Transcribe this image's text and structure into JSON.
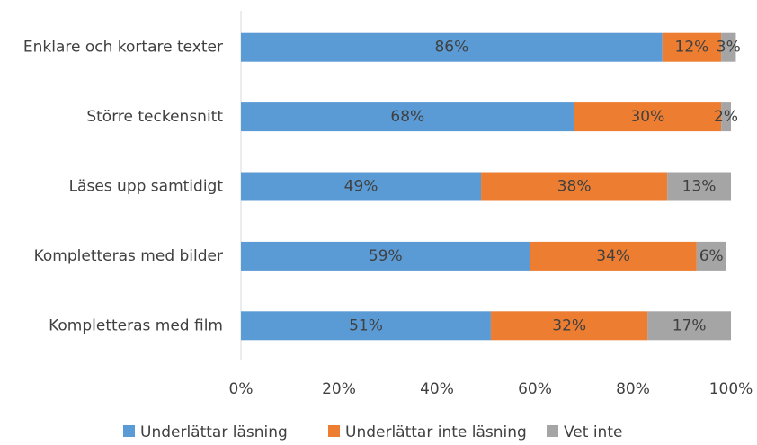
{
  "chart_data": {
    "type": "stacked_barh",
    "categories": [
      "Enklare och kortare texter",
      "Större teckensnitt",
      "Läses upp samtidigt",
      "Kompletteras med bilder",
      "Kompletteras med film"
    ],
    "series": [
      {
        "name": "Underlättar läsning",
        "color": "#5b9bd5",
        "values": [
          86,
          68,
          49,
          59,
          51
        ],
        "value_labels": [
          "86%",
          "68%",
          "49%",
          "59%",
          "51%"
        ]
      },
      {
        "name": "Underlättar inte läsning",
        "color": "#ed7d31",
        "values": [
          12,
          30,
          38,
          34,
          32
        ],
        "value_labels": [
          "12%",
          "30%",
          "38%",
          "34%",
          "32%"
        ]
      },
      {
        "name": "Vet inte",
        "color": "#a5a5a5",
        "values": [
          3,
          2,
          13,
          6,
          17
        ],
        "value_labels": [
          "3%",
          "2%",
          "13%",
          "6%",
          "17%"
        ]
      }
    ],
    "xlim": [
      0,
      100
    ],
    "xticks": [
      {
        "value": 0,
        "label": "0%"
      },
      {
        "value": 20,
        "label": "20%"
      },
      {
        "value": 40,
        "label": "40%"
      },
      {
        "value": 60,
        "label": "60%"
      },
      {
        "value": 80,
        "label": "80%"
      },
      {
        "value": 100,
        "label": "100%"
      }
    ],
    "grid": false,
    "legend": "bottom"
  }
}
